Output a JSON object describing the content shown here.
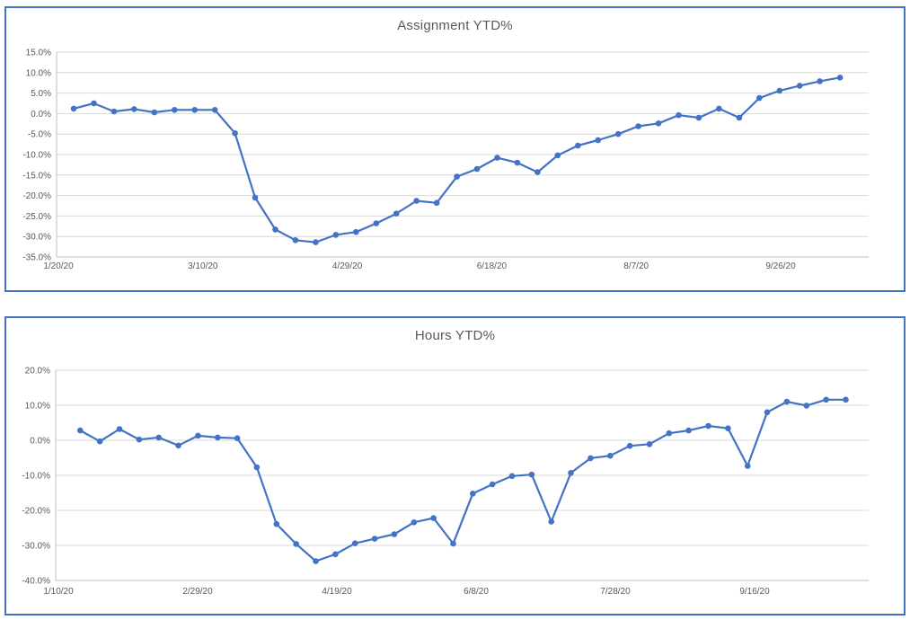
{
  "theme": {
    "accent_blue": "#4472C4",
    "frame_border": "#4472C4",
    "gridline": "#D9D9D9",
    "axis_line": "#BFBFBF",
    "text_gray": "#595959",
    "background": "#FFFFFF"
  },
  "chart_data": [
    {
      "type": "line",
      "title": "Assignment YTD%",
      "legend": "none",
      "grid": true,
      "marker": "circle",
      "series_color": "#4472C4",
      "ylim": [
        -35,
        15
      ],
      "y_step": 5,
      "y_tick_labels": [
        "15.0%",
        "10.0%",
        "5.0%",
        "0.0%",
        "-5.0%",
        "-10.0%",
        "-15.0%",
        "-20.0%",
        "-25.0%",
        "-30.0%",
        "-35.0%"
      ],
      "x_tick_labels": [
        "1/20/20",
        "3/10/20",
        "4/29/20",
        "6/18/20",
        "8/7/20",
        "9/26/20"
      ],
      "series": [
        {
          "name": "Assignment YTD%",
          "values": [
            1.2,
            2.5,
            0.5,
            1.1,
            0.3,
            0.9,
            0.9,
            0.9,
            -4.8,
            -20.5,
            -28.3,
            -30.9,
            -31.4,
            -29.6,
            -28.9,
            -26.8,
            -24.4,
            -21.3,
            -21.8,
            -15.4,
            -13.5,
            -10.8,
            -12.0,
            -14.3,
            -10.2,
            -7.8,
            -6.5,
            -5.0,
            -3.1,
            -2.4,
            -0.4,
            -1.0,
            1.2,
            -1.0,
            3.8,
            5.6,
            6.8,
            7.9,
            8.8
          ]
        }
      ]
    },
    {
      "type": "line",
      "title": "Hours YTD%",
      "legend": "none",
      "grid": true,
      "marker": "circle",
      "series_color": "#4472C4",
      "ylim": [
        -40,
        20
      ],
      "y_step": 10,
      "y_tick_labels": [
        "20.0%",
        "10.0%",
        "0.0%",
        "-10.0%",
        "-20.0%",
        "-30.0%",
        "-40.0%"
      ],
      "x_tick_labels": [
        "1/10/20",
        "2/29/20",
        "4/19/20",
        "6/8/20",
        "7/28/20",
        "9/16/20"
      ],
      "series": [
        {
          "name": "Hours YTD%",
          "values": [
            2.8,
            -0.3,
            3.2,
            0.2,
            0.8,
            -1.5,
            1.3,
            0.8,
            0.6,
            -7.7,
            -23.9,
            -29.6,
            -34.5,
            -32.5,
            -29.4,
            -28.1,
            -26.8,
            -23.4,
            -22.2,
            -29.5,
            -15.2,
            -12.6,
            -10.2,
            -9.8,
            -23.2,
            -9.3,
            -5.1,
            -4.4,
            -1.6,
            -1.1,
            2.0,
            2.8,
            4.1,
            3.4,
            -7.3,
            8.0,
            11.0,
            9.9,
            11.6,
            11.6
          ]
        }
      ]
    }
  ]
}
